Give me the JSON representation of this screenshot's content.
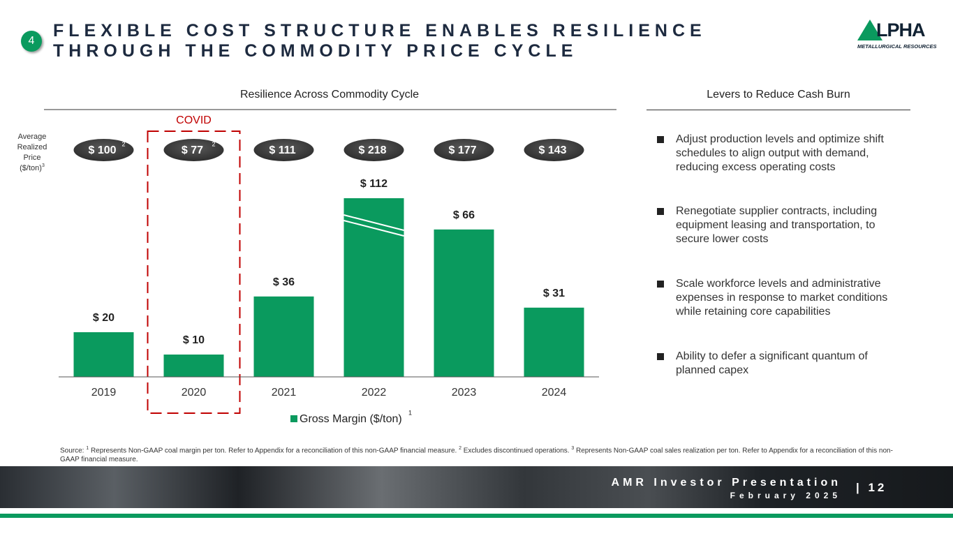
{
  "slide_number": "4",
  "title": "FLEXIBLE COST STRUCTURE ENABLES RESILIENCE THROUGH THE COMMODITY PRICE CYCLE",
  "logo": {
    "name": "LPHA",
    "tagline": "METALLURGICAL RESOURCES"
  },
  "chart_data": {
    "type": "bar",
    "title": "Resilience Across Commodity Cycle",
    "categories": [
      "2019",
      "2020",
      "2021",
      "2022",
      "2023",
      "2024"
    ],
    "series": [
      {
        "name": "Gross Margin ($/ton)",
        "name_note": "1",
        "color": "#0a9a5e",
        "values": [
          20,
          10,
          36,
          112,
          66,
          31
        ],
        "value_labels": [
          "$ 20",
          "$ 10",
          "$ 36",
          "$ 112",
          "$ 66",
          "$ 31"
        ]
      }
    ],
    "ylim": [
      0,
      80
    ],
    "axis_break": true,
    "annotation": {
      "text": "COVID",
      "category": 1,
      "color": "#c00000"
    },
    "price": {
      "label": "Average Realized Price ($/ton)",
      "label_note": "3",
      "values": [
        100,
        77,
        111,
        218,
        177,
        143
      ],
      "value_labels": [
        "$ 100",
        "$ 77",
        "$ 111",
        "$ 218",
        "$ 177",
        "$ 143"
      ],
      "notes": [
        "2",
        "2",
        null,
        null,
        null,
        null
      ]
    },
    "legend": "bottom"
  },
  "levers": {
    "title": "Levers to Reduce Cash Burn",
    "items": [
      "Adjust production levels and optimize shift schedules to align output with demand, reducing excess operating costs",
      "Renegotiate supplier contracts, including equipment leasing and transportation, to secure lower costs",
      "Scale workforce levels and administrative expenses in response to market conditions while retaining core capabilities",
      "Ability to defer a significant quantum of planned capex"
    ]
  },
  "source": [
    "Source:",
    "1",
    "Represents Non-GAAP coal margin per ton. Refer to Appendix for a reconciliation of this non-GAAP financial measure.",
    "2",
    "Excludes discontinued operations.",
    "3",
    "Represents Non-GAAP coal sales realization per ton. Refer to Appendix for a reconciliation of this non-GAAP financial measure."
  ],
  "footer": {
    "name": "AMR Investor Presentation",
    "date": "February 2025",
    "page": "| 12"
  }
}
